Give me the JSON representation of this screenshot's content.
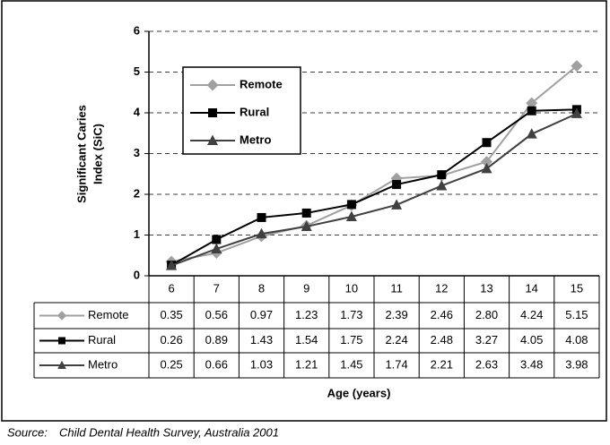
{
  "chart_data": {
    "type": "line",
    "ylabel": [
      "Significant Caries",
      "Index (SiC)"
    ],
    "xlabel": "Age (years)",
    "categories": [
      "6",
      "7",
      "8",
      "9",
      "10",
      "11",
      "12",
      "13",
      "14",
      "15"
    ],
    "series": [
      {
        "name": "Remote",
        "color": "#a0a0a0",
        "marker": "diamond",
        "values": [
          0.35,
          0.56,
          0.97,
          1.23,
          1.73,
          2.39,
          2.46,
          2.8,
          4.24,
          5.15
        ],
        "value_labels": [
          "0.35",
          "0.56",
          "0.97",
          "1.23",
          "1.73",
          "2.39",
          "2.46",
          "2.80",
          "4.24",
          "5.15"
        ]
      },
      {
        "name": "Rural",
        "color": "#000000",
        "marker": "square",
        "values": [
          0.26,
          0.89,
          1.43,
          1.54,
          1.75,
          2.24,
          2.48,
          3.27,
          4.05,
          4.08
        ],
        "value_labels": [
          "0.26",
          "0.89",
          "1.43",
          "1.54",
          "1.75",
          "2.24",
          "2.48",
          "3.27",
          "4.05",
          "4.08"
        ]
      },
      {
        "name": "Metro",
        "color": "#404040",
        "marker": "triangle",
        "values": [
          0.25,
          0.66,
          1.03,
          1.21,
          1.45,
          1.74,
          2.21,
          2.63,
          3.48,
          3.98
        ],
        "value_labels": [
          "0.25",
          "0.66",
          "1.03",
          "1.21",
          "1.45",
          "1.74",
          "2.21",
          "2.63",
          "3.48",
          "3.98"
        ]
      }
    ],
    "ylim": [
      0,
      6
    ],
    "yticks": [
      0,
      1,
      2,
      3,
      4,
      5,
      6
    ],
    "grid": true,
    "legend": "upper left",
    "source": {
      "label": "Source:",
      "text": "Child Dental Health Survey, Australia 2001"
    }
  }
}
